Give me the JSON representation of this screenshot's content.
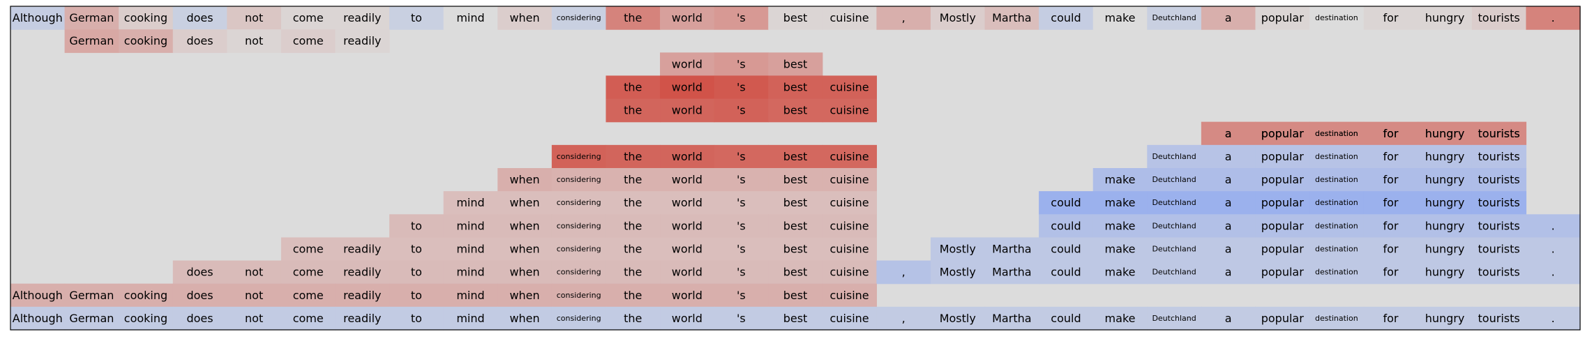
{
  "chart_data": {
    "type": "heatmap",
    "title": "",
    "xlabel": "",
    "ylabel": "",
    "grid": false,
    "color_scale": {
      "neutral": "#dcdcdc",
      "strong_positive": "#d0473c",
      "strong_negative": "#7f9ef4",
      "range": [
        -1,
        1
      ]
    },
    "tokens": [
      "Although",
      "German",
      "cooking",
      "does",
      "not",
      "come",
      "readily",
      "to",
      "mind",
      "when",
      "considering",
      "the",
      "world",
      "'s",
      "best",
      "cuisine",
      ",",
      "Mostly",
      "Martha",
      "could",
      "make",
      "Deutchland",
      "a",
      "popular",
      "destination",
      "for",
      "hungry",
      "tourists",
      "."
    ],
    "small_tokens": [
      10,
      21,
      24
    ],
    "rows": [
      {
        "start": 0,
        "end": 28,
        "values": [
          -0.25,
          0.3,
          0.1,
          -0.2,
          0.15,
          0.05,
          0.05,
          -0.2,
          0.0,
          0.1,
          -0.2,
          0.6,
          0.4,
          0.45,
          0.05,
          0.05,
          0.3,
          0.1,
          0.2,
          -0.25,
          0.0,
          -0.2,
          0.3,
          0.05,
          0.0,
          0.05,
          0.05,
          0.1,
          0.6
        ]
      },
      {
        "start": 1,
        "end": 6,
        "values": [
          0.35,
          0.3,
          0.1,
          0.05,
          0.1,
          0.05
        ]
      },
      {
        "start": 12,
        "end": 14,
        "values": [
          0.4,
          0.45,
          0.4
        ]
      },
      {
        "start": 11,
        "end": 15,
        "values": [
          0.85,
          0.92,
          0.88,
          0.82,
          0.82
        ]
      },
      {
        "start": 11,
        "end": 15,
        "values": [
          0.8,
          0.8,
          0.82,
          0.78,
          0.78
        ]
      },
      {
        "start": 22,
        "end": 27,
        "values": [
          0.35,
          0.3,
          0.3,
          0.25,
          0.3,
          0.3
        ]
      },
      {
        "start": 22,
        "end": 27,
        "values": [
          0.55,
          0.55,
          0.55,
          0.55,
          0.55,
          0.55
        ]
      },
      {
        "start": 10,
        "end": 15,
        "values": [
          0.82,
          0.8,
          0.8,
          0.78,
          0.78,
          0.78
        ]
      },
      {
        "start": 21,
        "end": 27,
        "values": [
          -0.4,
          -0.4,
          -0.4,
          -0.4,
          -0.4,
          -0.4,
          -0.4
        ]
      },
      {
        "start": 9,
        "end": 15,
        "values": [
          0.3,
          0.28,
          0.28,
          0.28,
          0.28,
          0.28,
          0.28
        ]
      },
      {
        "start": 20,
        "end": 27,
        "values": [
          -0.5,
          -0.5,
          -0.5,
          -0.5,
          -0.5,
          -0.5,
          -0.5,
          -0.5
        ]
      },
      {
        "start": 8,
        "end": 15,
        "values": [
          0.2,
          0.2,
          0.2,
          0.2,
          0.2,
          0.2,
          0.2,
          0.2
        ]
      },
      {
        "start": 19,
        "end": 27,
        "values": [
          -0.7,
          -0.7,
          -0.7,
          -0.7,
          -0.7,
          -0.7,
          -0.7,
          -0.7,
          -0.7
        ]
      },
      {
        "start": 7,
        "end": 15,
        "values": [
          0.22,
          0.22,
          0.22,
          0.22,
          0.22,
          0.22,
          0.22,
          0.22,
          0.22
        ]
      },
      {
        "start": 19,
        "end": 28,
        "values": [
          -0.45,
          -0.45,
          -0.45,
          -0.45,
          -0.45,
          -0.45,
          -0.45,
          -0.45,
          -0.45,
          -0.45
        ]
      },
      {
        "start": 5,
        "end": 15,
        "values": [
          0.2,
          0.2,
          0.2,
          0.2,
          0.2,
          0.2,
          0.2,
          0.2,
          0.2,
          0.2,
          0.2
        ]
      },
      {
        "start": 17,
        "end": 28,
        "values": [
          -0.32,
          -0.32,
          -0.32,
          -0.32,
          -0.32,
          -0.32,
          -0.32,
          -0.32,
          -0.32,
          -0.32,
          -0.32,
          -0.32
        ]
      },
      {
        "start": 3,
        "end": 15,
        "values": [
          0.22,
          0.22,
          0.22,
          0.22,
          0.22,
          0.22,
          0.22,
          0.22,
          0.22,
          0.22,
          0.22,
          0.22,
          0.22
        ]
      },
      {
        "start": 16,
        "end": 28,
        "values": [
          -0.42,
          -0.32,
          -0.32,
          -0.32,
          -0.32,
          -0.32,
          -0.32,
          -0.32,
          -0.32,
          -0.32,
          -0.32,
          -0.32,
          -0.32
        ]
      },
      {
        "start": 0,
        "end": 15,
        "values": [
          0.3,
          0.3,
          0.3,
          0.3,
          0.3,
          0.3,
          0.3,
          0.3,
          0.3,
          0.3,
          0.3,
          0.3,
          0.3,
          0.3,
          0.3,
          0.3
        ]
      },
      {
        "start": 0,
        "end": 28,
        "values": [
          -0.28,
          -0.28,
          -0.28,
          -0.28,
          -0.28,
          -0.28,
          -0.28,
          -0.28,
          -0.28,
          -0.28,
          -0.28,
          -0.28,
          -0.28,
          -0.28,
          -0.28,
          -0.28,
          -0.28,
          -0.28,
          -0.28,
          -0.28,
          -0.28,
          -0.28,
          -0.28,
          -0.28,
          -0.28,
          -0.28,
          -0.28,
          -0.28,
          -0.28
        ]
      }
    ],
    "row_lines": [
      [
        0
      ],
      [
        1
      ],
      [
        2
      ],
      [
        3
      ],
      [
        4
      ],
      [
        5,
        6
      ],
      [
        7,
        8
      ],
      [
        9,
        10
      ],
      [
        11,
        12
      ],
      [
        13,
        14
      ],
      [
        15,
        16
      ],
      [
        17,
        18
      ],
      [
        19
      ],
      [
        20
      ]
    ]
  }
}
